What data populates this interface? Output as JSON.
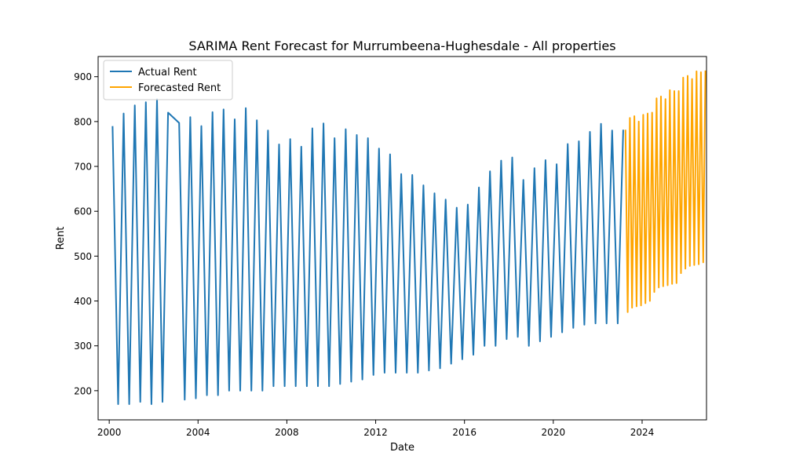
{
  "chart_data": {
    "type": "line",
    "title": "SARIMA Rent Forecast for Murrumbeena-Hughesdale - All properties",
    "xlabel": "Date",
    "ylabel": "Rent",
    "xlim": [
      1999.5,
      2026.9
    ],
    "ylim": [
      135,
      945
    ],
    "x_ticks": [
      2000,
      2004,
      2008,
      2012,
      2016,
      2020,
      2024
    ],
    "x_tick_labels": [
      "2000",
      "2004",
      "2008",
      "2012",
      "2016",
      "2020",
      "2024"
    ],
    "y_ticks": [
      200,
      300,
      400,
      500,
      600,
      700,
      800,
      900
    ],
    "y_tick_labels": [
      "200",
      "300",
      "400",
      "500",
      "600",
      "700",
      "800",
      "900"
    ],
    "grid": false,
    "legend_position": "upper-left",
    "series": [
      {
        "name": "Actual Rent",
        "color": "#1f77b4",
        "points": [
          [
            2000.15,
            788
          ],
          [
            2000.4,
            170
          ],
          [
            2000.65,
            818
          ],
          [
            2000.9,
            170
          ],
          [
            2001.15,
            836
          ],
          [
            2001.4,
            175
          ],
          [
            2001.65,
            843
          ],
          [
            2001.9,
            170
          ],
          [
            2002.15,
            850
          ],
          [
            2002.4,
            175
          ],
          [
            2002.65,
            820
          ],
          [
            2003.15,
            797
          ],
          [
            2003.4,
            180
          ],
          [
            2003.65,
            810
          ],
          [
            2003.9,
            183
          ],
          [
            2004.15,
            790
          ],
          [
            2004.4,
            190
          ],
          [
            2004.65,
            821
          ],
          [
            2004.9,
            190
          ],
          [
            2005.15,
            827
          ],
          [
            2005.4,
            200
          ],
          [
            2005.65,
            805
          ],
          [
            2005.9,
            200
          ],
          [
            2006.15,
            830
          ],
          [
            2006.4,
            200
          ],
          [
            2006.65,
            803
          ],
          [
            2006.9,
            200
          ],
          [
            2007.15,
            780
          ],
          [
            2007.4,
            210
          ],
          [
            2007.65,
            749
          ],
          [
            2007.9,
            210
          ],
          [
            2008.15,
            761
          ],
          [
            2008.4,
            210
          ],
          [
            2008.65,
            744
          ],
          [
            2008.9,
            210
          ],
          [
            2009.15,
            785
          ],
          [
            2009.4,
            210
          ],
          [
            2009.65,
            796
          ],
          [
            2009.9,
            210
          ],
          [
            2010.15,
            763
          ],
          [
            2010.4,
            215
          ],
          [
            2010.65,
            783
          ],
          [
            2010.9,
            220
          ],
          [
            2011.15,
            770
          ],
          [
            2011.4,
            225
          ],
          [
            2011.65,
            763
          ],
          [
            2011.9,
            235
          ],
          [
            2012.15,
            740
          ],
          [
            2012.4,
            240
          ],
          [
            2012.65,
            727
          ],
          [
            2012.9,
            240
          ],
          [
            2013.15,
            683
          ],
          [
            2013.4,
            240
          ],
          [
            2013.65,
            681
          ],
          [
            2013.9,
            240
          ],
          [
            2014.15,
            658
          ],
          [
            2014.4,
            245
          ],
          [
            2014.65,
            640
          ],
          [
            2014.9,
            250
          ],
          [
            2015.15,
            626
          ],
          [
            2015.4,
            260
          ],
          [
            2015.65,
            608
          ],
          [
            2015.9,
            270
          ],
          [
            2016.15,
            615
          ],
          [
            2016.4,
            280
          ],
          [
            2016.65,
            653
          ],
          [
            2016.9,
            300
          ],
          [
            2017.15,
            689
          ],
          [
            2017.4,
            300
          ],
          [
            2017.65,
            713
          ],
          [
            2017.9,
            315
          ],
          [
            2018.15,
            720
          ],
          [
            2018.4,
            320
          ],
          [
            2018.65,
            670
          ],
          [
            2018.9,
            300
          ],
          [
            2019.15,
            696
          ],
          [
            2019.4,
            310
          ],
          [
            2019.65,
            714
          ],
          [
            2019.9,
            320
          ],
          [
            2020.15,
            705
          ],
          [
            2020.4,
            330
          ],
          [
            2020.65,
            750
          ],
          [
            2020.9,
            340
          ],
          [
            2021.15,
            756
          ],
          [
            2021.4,
            347
          ],
          [
            2021.65,
            777
          ],
          [
            2021.9,
            350
          ],
          [
            2022.15,
            795
          ],
          [
            2022.4,
            350
          ],
          [
            2022.65,
            780
          ],
          [
            2022.9,
            350
          ],
          [
            2023.15,
            780
          ]
        ]
      },
      {
        "name": "Forecasted Rent",
        "color": "#ffa500",
        "points": [
          [
            2023.25,
            780
          ],
          [
            2023.35,
            375
          ],
          [
            2023.45,
            808
          ],
          [
            2023.55,
            385
          ],
          [
            2023.65,
            812
          ],
          [
            2023.75,
            388
          ],
          [
            2023.85,
            800
          ],
          [
            2023.95,
            390
          ],
          [
            2024.05,
            815
          ],
          [
            2024.15,
            395
          ],
          [
            2024.25,
            818
          ],
          [
            2024.35,
            400
          ],
          [
            2024.45,
            820
          ],
          [
            2024.55,
            420
          ],
          [
            2024.65,
            852
          ],
          [
            2024.75,
            430
          ],
          [
            2024.85,
            856
          ],
          [
            2024.95,
            433
          ],
          [
            2025.05,
            850
          ],
          [
            2025.15,
            435
          ],
          [
            2025.25,
            870
          ],
          [
            2025.35,
            438
          ],
          [
            2025.45,
            868
          ],
          [
            2025.55,
            440
          ],
          [
            2025.65,
            868
          ],
          [
            2025.75,
            462
          ],
          [
            2025.85,
            898
          ],
          [
            2025.95,
            472
          ],
          [
            2026.05,
            902
          ],
          [
            2026.15,
            478
          ],
          [
            2026.25,
            895
          ],
          [
            2026.35,
            480
          ],
          [
            2026.45,
            912
          ],
          [
            2026.55,
            482
          ],
          [
            2026.65,
            910
          ],
          [
            2026.75,
            486
          ],
          [
            2026.85,
            912
          ]
        ]
      }
    ]
  }
}
